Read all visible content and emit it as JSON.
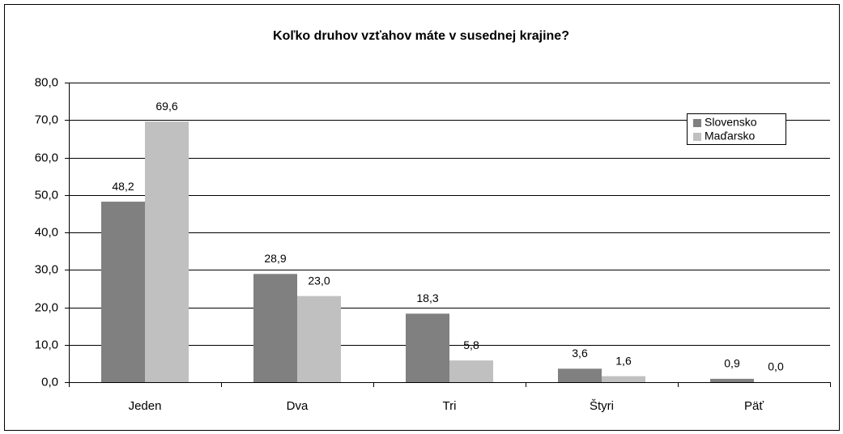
{
  "chart_data": {
    "type": "bar",
    "title": "Koľko druhov vzťahov máte v susednej krajine?",
    "categories": [
      "Jeden",
      "Dva",
      "Tri",
      "Štyri",
      "Päť"
    ],
    "series": [
      {
        "name": "Slovensko",
        "color": "#808080",
        "values": [
          48.2,
          28.9,
          18.3,
          3.6,
          0.9
        ],
        "value_labels": [
          "48,2",
          "28,9",
          "18,3",
          "3,6",
          "0,9"
        ]
      },
      {
        "name": "Maďarsko",
        "color": "#c0c0c0",
        "values": [
          69.6,
          23.0,
          5.8,
          1.6,
          0.0
        ],
        "value_labels": [
          "69,6",
          "23,0",
          "5,8",
          "1,6",
          "0,0"
        ]
      }
    ],
    "ylim": [
      0,
      80
    ],
    "yticks": [
      {
        "value": 0,
        "label": "0,0"
      },
      {
        "value": 10,
        "label": "10,0"
      },
      {
        "value": 20,
        "label": "20,0"
      },
      {
        "value": 30,
        "label": "30,0"
      },
      {
        "value": 40,
        "label": "40,0"
      },
      {
        "value": 50,
        "label": "50,0"
      },
      {
        "value": 60,
        "label": "60,0"
      },
      {
        "value": 70,
        "label": "70,0"
      },
      {
        "value": 80,
        "label": "80,0"
      }
    ],
    "grid": true,
    "legend": "top-right"
  }
}
